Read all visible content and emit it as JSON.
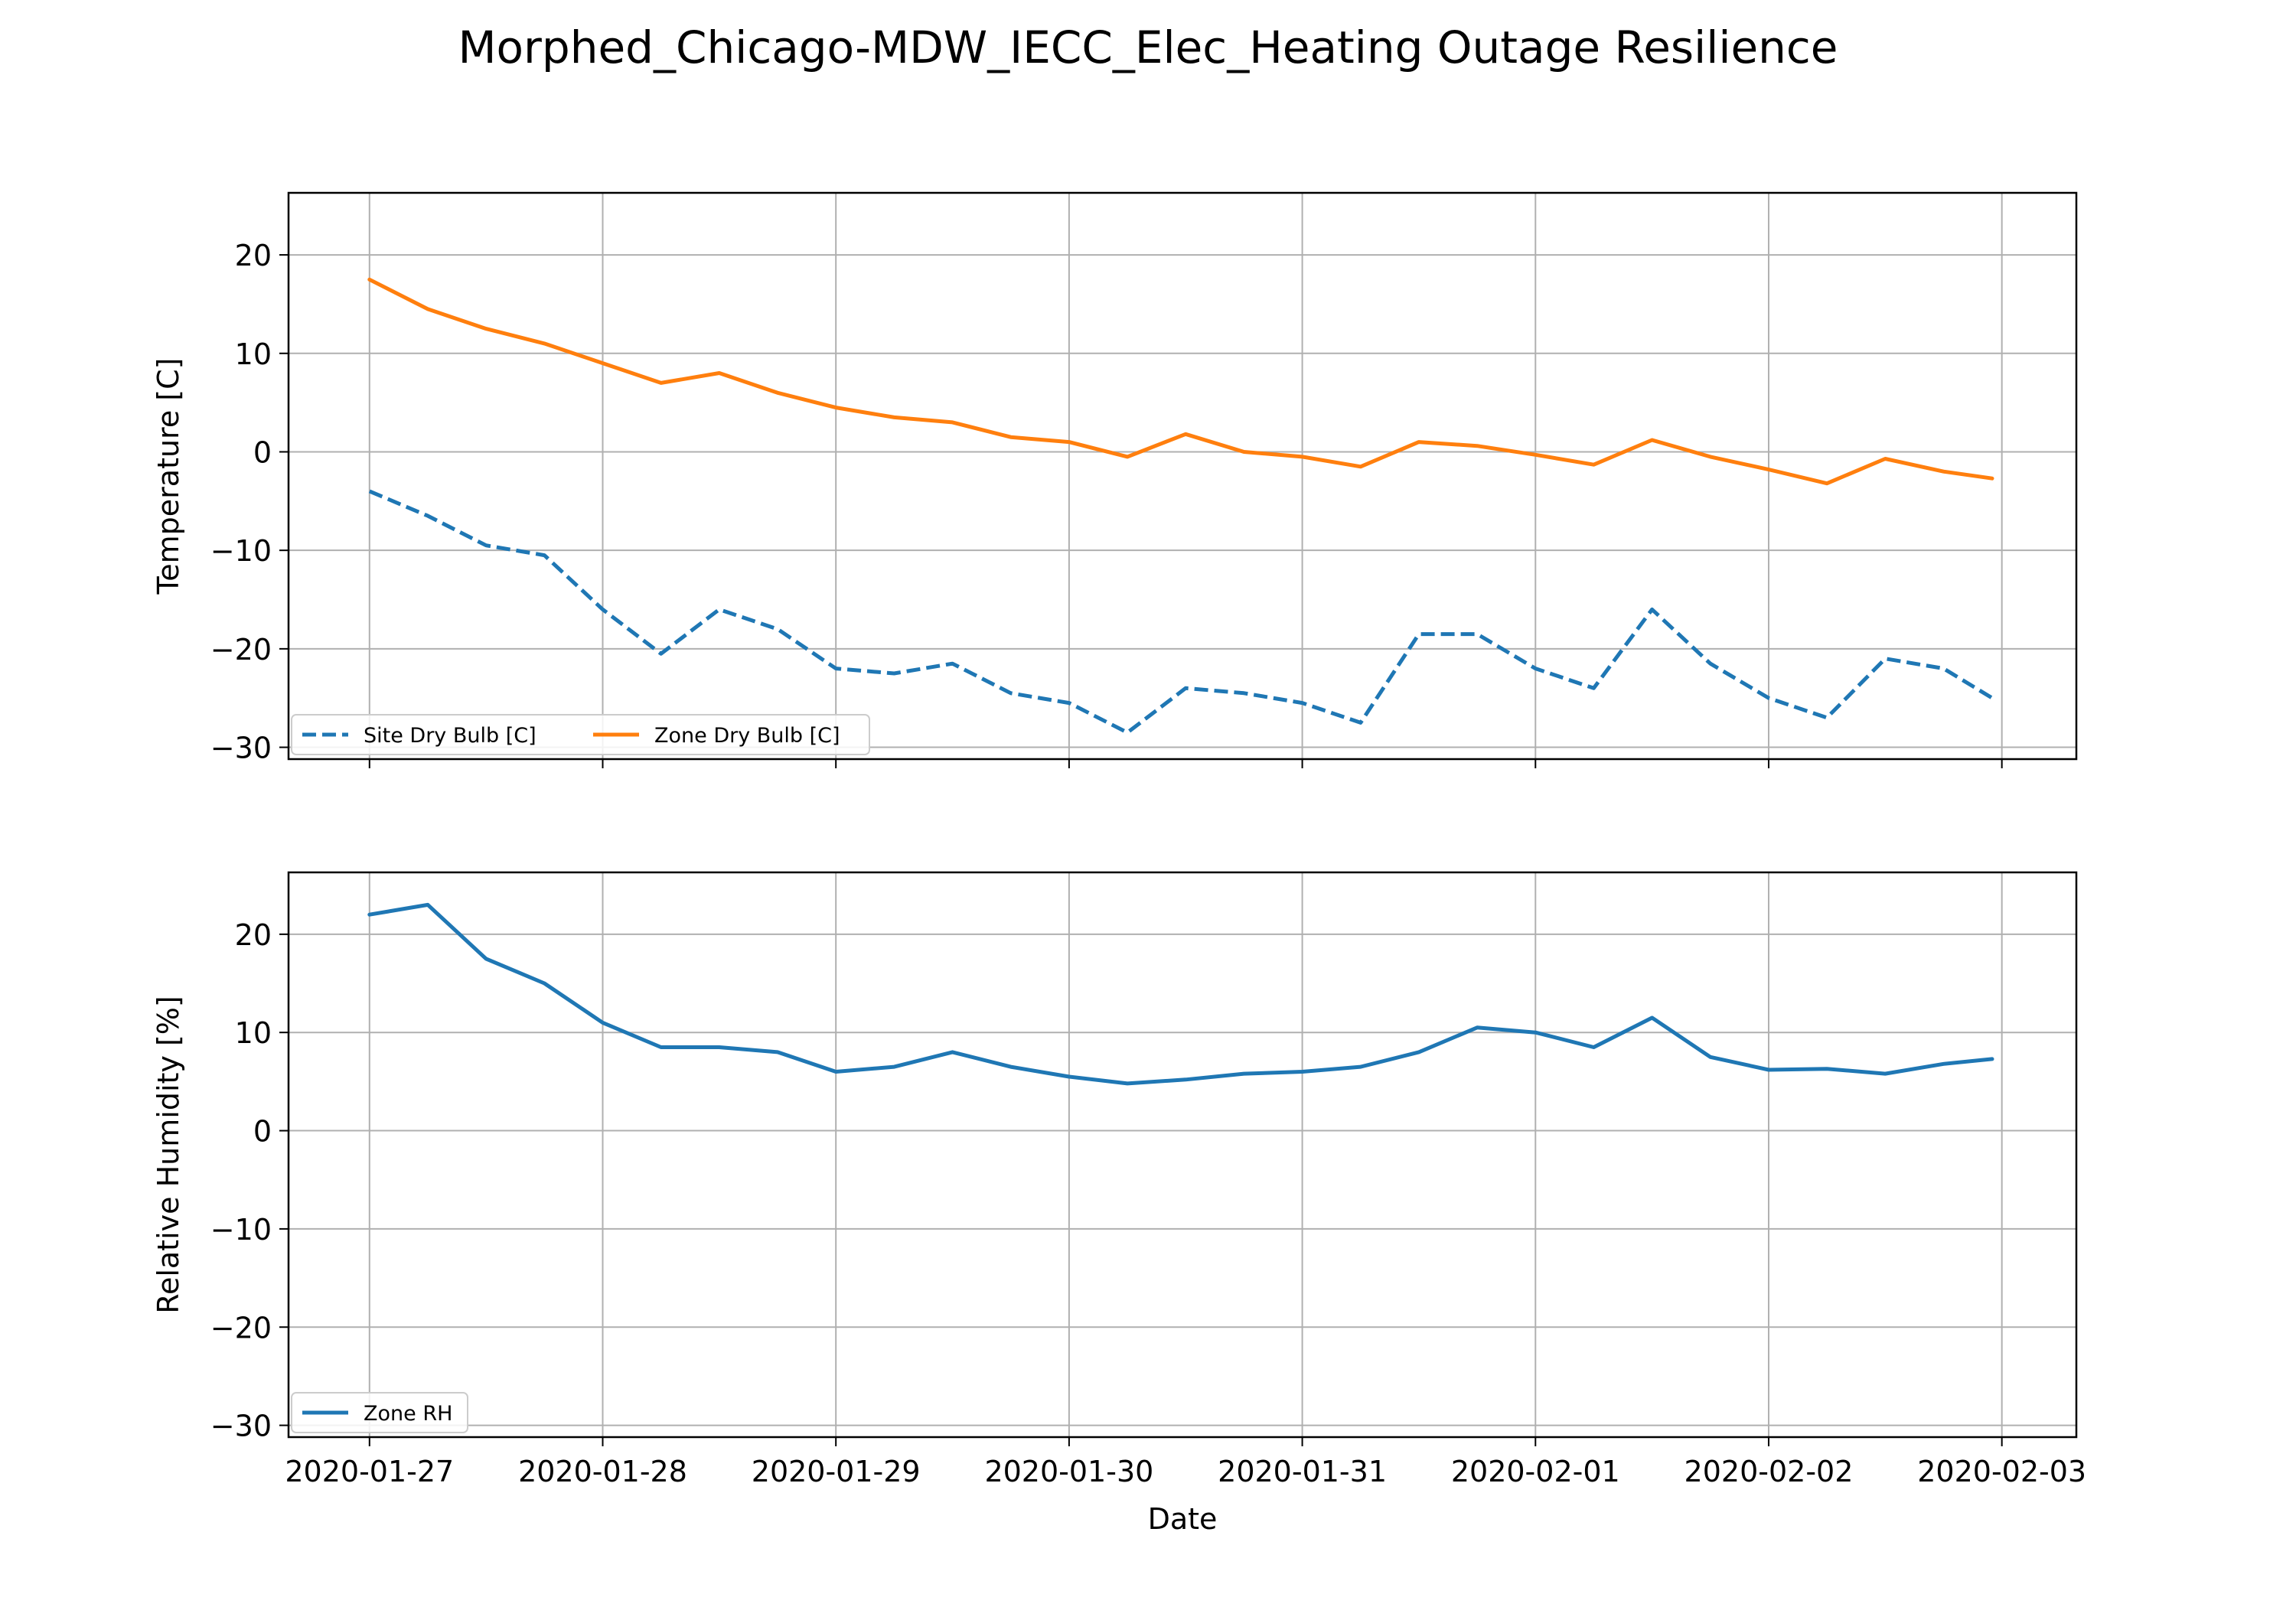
{
  "figure": {
    "title": "Morphed_Chicago-MDW_IECC_Elec_Heating Outage Resilience"
  },
  "chart_data": [
    {
      "type": "line",
      "title": "",
      "xlabel": "",
      "ylabel": "Temperature [C]",
      "x_ticks": [
        "2020-01-27",
        "2020-01-28",
        "2020-01-29",
        "2020-01-30",
        "2020-01-31",
        "2020-02-01",
        "2020-02-02",
        "2020-02-03"
      ],
      "show_x_tick_labels": false,
      "y_ticks": [
        20,
        10,
        0,
        -10,
        -20,
        -30
      ],
      "xlim": [
        "2020-01-26 15:40",
        "2020-02-03 07:40"
      ],
      "ylim": [
        -31.2,
        26.3
      ],
      "grid": true,
      "legend": {
        "position": "bottom-left",
        "columns": 2
      },
      "x": [
        "2020-01-27 00:00",
        "2020-01-27 06:00",
        "2020-01-27 12:00",
        "2020-01-27 18:00",
        "2020-01-28 00:00",
        "2020-01-28 06:00",
        "2020-01-28 12:00",
        "2020-01-28 18:00",
        "2020-01-29 00:00",
        "2020-01-29 06:00",
        "2020-01-29 12:00",
        "2020-01-29 18:00",
        "2020-01-30 00:00",
        "2020-01-30 06:00",
        "2020-01-30 12:00",
        "2020-01-30 18:00",
        "2020-01-31 00:00",
        "2020-01-31 06:00",
        "2020-01-31 12:00",
        "2020-01-31 18:00",
        "2020-02-01 00:00",
        "2020-02-01 06:00",
        "2020-02-01 12:00",
        "2020-02-01 18:00",
        "2020-02-02 00:00",
        "2020-02-02 06:00",
        "2020-02-02 12:00",
        "2020-02-02 18:00",
        "2020-02-02 23:00"
      ],
      "series": [
        {
          "name": "Site Dry Bulb [C]",
          "color": "#1f77b4",
          "style": "dashed",
          "values": [
            -4,
            -6.5,
            -9.5,
            -10.5,
            -16,
            -20.5,
            -16,
            -18,
            -22,
            -22.5,
            -21.5,
            -24.5,
            -25.5,
            -28.5,
            -24,
            -24.5,
            -25.5,
            -27.5,
            -18.5,
            -18.5,
            -22,
            -24,
            -16,
            -21.5,
            -25,
            -27,
            -21,
            -22,
            -25
          ]
        },
        {
          "name": "Zone Dry Bulb [C]",
          "color": "#ff7f0e",
          "style": "solid",
          "values": [
            17.5,
            14.5,
            12.5,
            11,
            9,
            7,
            8,
            6,
            4.5,
            3.5,
            3,
            1.5,
            1,
            -0.5,
            1.8,
            0,
            -0.5,
            -1.5,
            1,
            0.6,
            -0.3,
            -1.3,
            1.2,
            -0.5,
            -1.8,
            -3.2,
            -0.7,
            -2,
            -2.7
          ]
        }
      ]
    },
    {
      "type": "line",
      "title": "",
      "xlabel": "Date",
      "ylabel": "Relative Humidity [%]",
      "x_ticks": [
        "2020-01-27",
        "2020-01-28",
        "2020-01-29",
        "2020-01-30",
        "2020-01-31",
        "2020-02-01",
        "2020-02-02",
        "2020-02-03"
      ],
      "show_x_tick_labels": true,
      "y_ticks": [
        20,
        10,
        0,
        -10,
        -20,
        -30
      ],
      "xlim": [
        "2020-01-26 15:40",
        "2020-02-03 07:40"
      ],
      "ylim": [
        -31.2,
        26.3
      ],
      "grid": true,
      "legend": {
        "position": "bottom-left",
        "columns": 1
      },
      "x": [
        "2020-01-27 00:00",
        "2020-01-27 06:00",
        "2020-01-27 12:00",
        "2020-01-27 18:00",
        "2020-01-28 00:00",
        "2020-01-28 06:00",
        "2020-01-28 12:00",
        "2020-01-28 18:00",
        "2020-01-29 00:00",
        "2020-01-29 06:00",
        "2020-01-29 12:00",
        "2020-01-29 18:00",
        "2020-01-30 00:00",
        "2020-01-30 06:00",
        "2020-01-30 12:00",
        "2020-01-30 18:00",
        "2020-01-31 00:00",
        "2020-01-31 06:00",
        "2020-01-31 12:00",
        "2020-01-31 18:00",
        "2020-02-01 00:00",
        "2020-02-01 06:00",
        "2020-02-01 12:00",
        "2020-02-01 18:00",
        "2020-02-02 00:00",
        "2020-02-02 06:00",
        "2020-02-02 12:00",
        "2020-02-02 18:00",
        "2020-02-02 23:00"
      ],
      "series": [
        {
          "name": "Zone RH",
          "color": "#1f77b4",
          "style": "solid",
          "values": [
            22,
            23,
            17.5,
            15,
            11,
            8.5,
            8.5,
            8,
            6,
            6.5,
            8,
            6.5,
            5.5,
            4.8,
            5.2,
            5.8,
            6,
            6.5,
            8,
            10.5,
            10,
            8.5,
            11.5,
            7.5,
            6.2,
            6.3,
            5.8,
            6.8,
            7.3
          ]
        }
      ]
    }
  ]
}
